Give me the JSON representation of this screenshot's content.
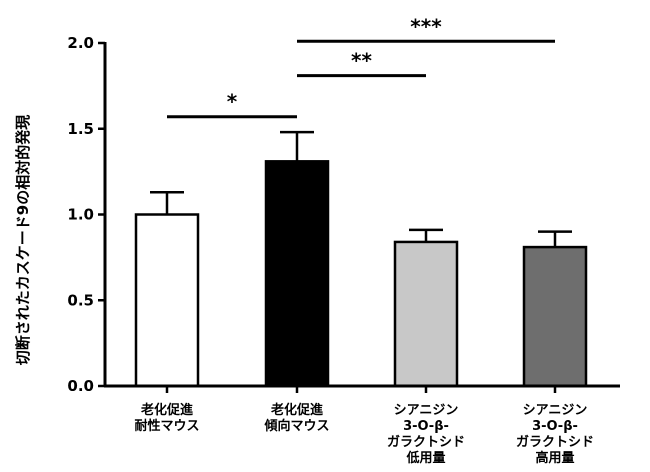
{
  "chart_data": {
    "type": "bar",
    "title": "",
    "xlabel": "",
    "ylabel": "切断されたカスケード9の相対的発現",
    "ylim": [
      0,
      2.0
    ],
    "yticks": [
      "0.0",
      "0.5",
      "1.0",
      "1.5",
      "2.0"
    ],
    "ytick_values": [
      0.0,
      0.5,
      1.0,
      1.5,
      2.0
    ],
    "categories": [
      [
        "老化促進",
        "耐性マウス"
      ],
      [
        "老化促進",
        "傾向マウス"
      ],
      [
        "シアニジン",
        "3-O-β-",
        "ガラクトシド",
        "低用量"
      ],
      [
        "シアニジン",
        "3-O-β-",
        "ガラクトシド",
        "高用量"
      ]
    ],
    "values": [
      1.0,
      1.31,
      0.84,
      0.81
    ],
    "errors": [
      0.13,
      0.17,
      0.07,
      0.09
    ],
    "colors": [
      "#ffffff",
      "#000000",
      "#c8c8c8",
      "#6e6e6e"
    ],
    "significance": [
      {
        "from": 0,
        "to": 1,
        "level": 1.57,
        "label": "*"
      },
      {
        "from": 1,
        "to": 2,
        "level": 1.81,
        "label": "**"
      },
      {
        "from": 1,
        "to": 3,
        "level": 2.01,
        "label": "***"
      }
    ]
  }
}
